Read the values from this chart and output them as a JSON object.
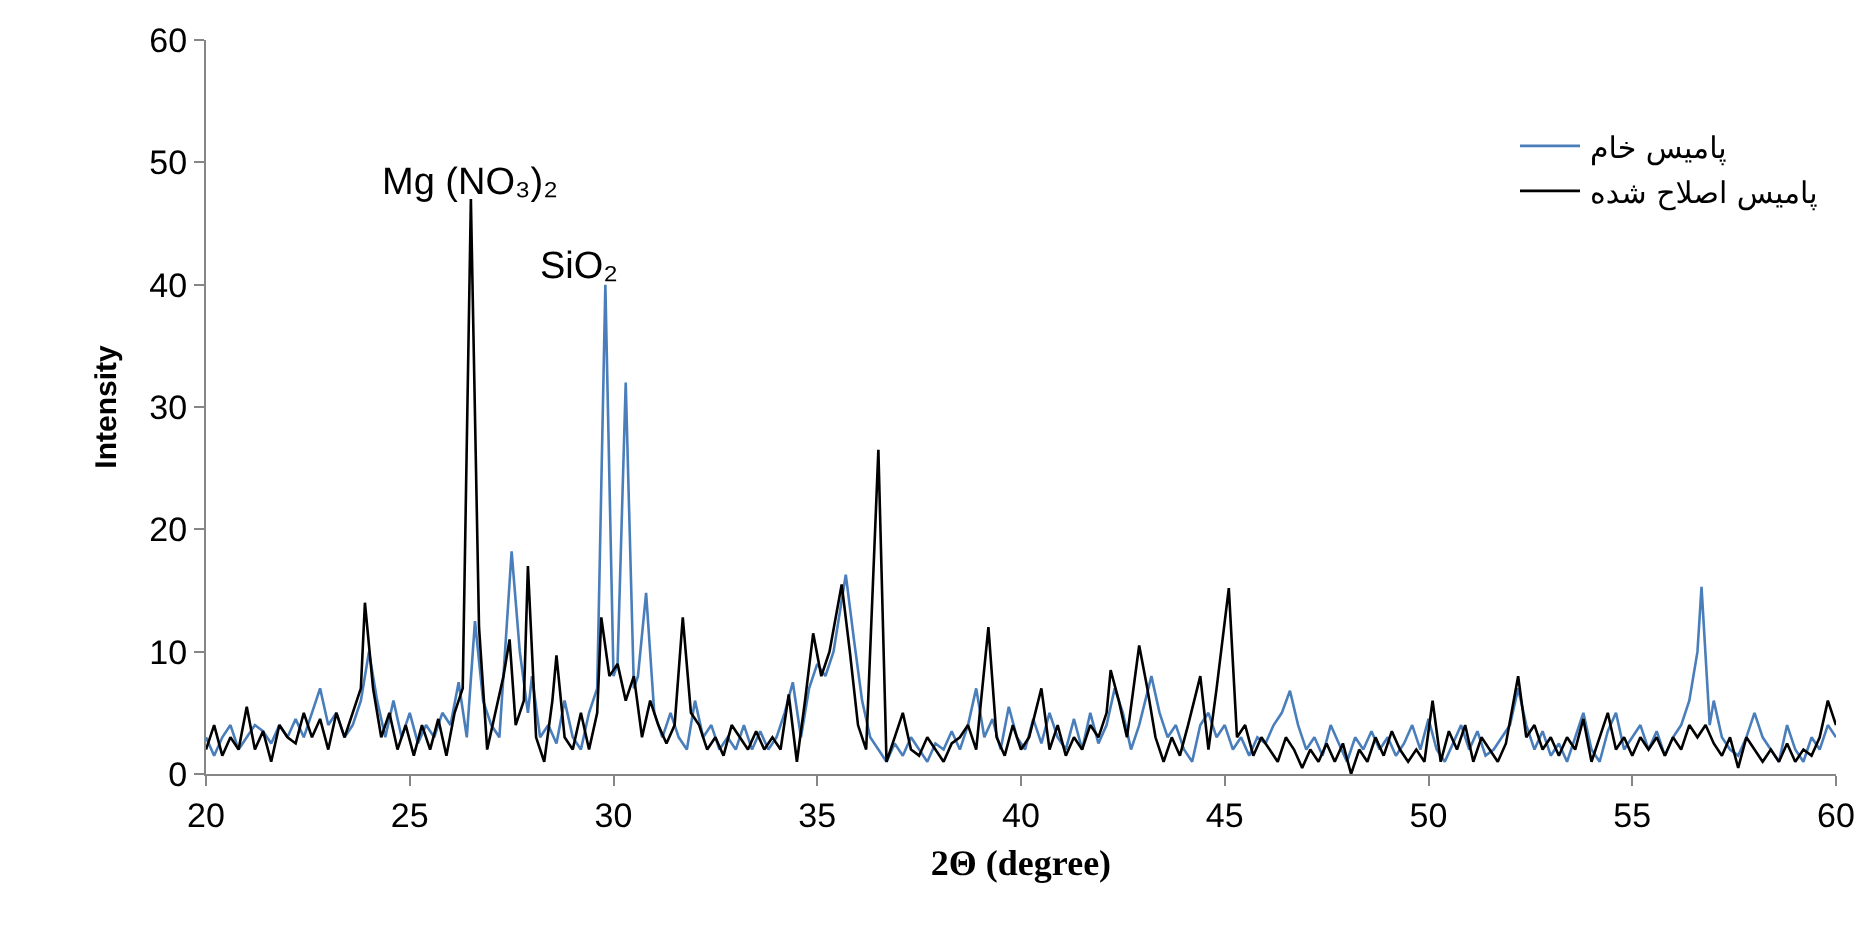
{
  "chart_data": {
    "type": "line",
    "xlabel": "2Θ (degree)",
    "ylabel": "Intensity",
    "xlim": [
      20,
      60
    ],
    "xticks": [
      20,
      25,
      30,
      35,
      40,
      45,
      50,
      55,
      60
    ],
    "ylim": [
      0,
      60
    ],
    "yticks": [
      0,
      10,
      20,
      30,
      40,
      50,
      60
    ],
    "grid": false,
    "legend": "top right",
    "marker": "none",
    "line_style": "solid",
    "annotations": [
      {
        "text": "Mg (NO₃)₂",
        "x": 26.5,
        "y": 47
      },
      {
        "text": "SiO₂",
        "x": 29.8,
        "y": 40
      }
    ],
    "series": [
      {
        "name": "پامیس خام",
        "color": "#4a7ebb",
        "x": [
          20,
          20.2,
          20.4,
          20.6,
          20.8,
          21,
          21.2,
          21.4,
          21.6,
          21.8,
          22,
          22.2,
          22.4,
          22.6,
          22.8,
          23,
          23.2,
          23.4,
          23.6,
          23.8,
          24,
          24.2,
          24.4,
          24.6,
          24.8,
          25,
          25.2,
          25.4,
          25.6,
          25.8,
          26,
          26.2,
          26.4,
          26.6,
          26.8,
          27,
          27.2,
          27.5,
          27.7,
          27.9,
          28,
          28.2,
          28.4,
          28.6,
          28.8,
          29,
          29.2,
          29.4,
          29.6,
          29.8,
          30,
          30.1,
          30.3,
          30.5,
          30.6,
          30.8,
          31,
          31.2,
          31.4,
          31.6,
          31.8,
          32,
          32.2,
          32.4,
          32.6,
          32.8,
          33,
          33.2,
          33.4,
          33.6,
          33.8,
          34,
          34.2,
          34.4,
          34.6,
          34.8,
          35,
          35.2,
          35.4,
          35.7,
          35.9,
          36.1,
          36.3,
          36.5,
          36.7,
          36.9,
          37.1,
          37.3,
          37.5,
          37.7,
          37.9,
          38.1,
          38.3,
          38.5,
          38.7,
          38.9,
          39.1,
          39.3,
          39.5,
          39.7,
          39.9,
          40.1,
          40.3,
          40.5,
          40.7,
          40.9,
          41.1,
          41.3,
          41.5,
          41.7,
          41.9,
          42.1,
          42.3,
          42.5,
          42.7,
          42.9,
          43.2,
          43.4,
          43.6,
          43.8,
          44,
          44.2,
          44.4,
          44.6,
          44.8,
          45,
          45.2,
          45.4,
          45.6,
          45.8,
          46,
          46.2,
          46.4,
          46.6,
          46.8,
          47,
          47.2,
          47.4,
          47.6,
          47.8,
          48,
          48.2,
          48.4,
          48.6,
          48.8,
          49,
          49.2,
          49.4,
          49.6,
          49.8,
          50,
          50.2,
          50.4,
          50.6,
          50.8,
          51,
          51.2,
          51.4,
          51.6,
          51.8,
          52,
          52.2,
          52.4,
          52.6,
          52.8,
          53,
          53.2,
          53.4,
          53.6,
          53.8,
          54,
          54.2,
          54.4,
          54.6,
          54.8,
          55,
          55.2,
          55.4,
          55.6,
          55.8,
          56,
          56.2,
          56.4,
          56.6,
          56.7,
          56.9,
          57,
          57.2,
          57.4,
          57.6,
          57.8,
          58,
          58.2,
          58.4,
          58.6,
          58.8,
          59,
          59.2,
          59.4,
          59.6,
          59.8,
          60
        ],
        "values": [
          3,
          1.5,
          3,
          4,
          2,
          3,
          4,
          3.5,
          2.5,
          4,
          3,
          4.5,
          3,
          5,
          7,
          4,
          5,
          3,
          4,
          6,
          10,
          6,
          3,
          6,
          3,
          5,
          2.5,
          4,
          3,
          5,
          4,
          7.5,
          3,
          12.5,
          6,
          4,
          3,
          18.2,
          10,
          5,
          8,
          3,
          4,
          2.5,
          6,
          3,
          2,
          5,
          7,
          40,
          8,
          9,
          32,
          7,
          8,
          14.8,
          5,
          3,
          5,
          3,
          2,
          6,
          3,
          4,
          2,
          3,
          2,
          4,
          2,
          3.5,
          2,
          3,
          5,
          7.5,
          3,
          7,
          9,
          8,
          10,
          16.3,
          11,
          6,
          3,
          2,
          1,
          2.5,
          1.5,
          3,
          2,
          1,
          2.5,
          2,
          3.5,
          2,
          4,
          7,
          3,
          4.5,
          2,
          5.5,
          3,
          2,
          4.5,
          2.5,
          5,
          3,
          2,
          4.5,
          2,
          5,
          2.5,
          4,
          7,
          5,
          2,
          4,
          8,
          5,
          3,
          4,
          2,
          1,
          4,
          5,
          3,
          4,
          2,
          3,
          1.5,
          3,
          2.5,
          4,
          5,
          6.8,
          4,
          2,
          3,
          1.5,
          4,
          2.5,
          1,
          3,
          2,
          3.5,
          2,
          3,
          1.5,
          2.5,
          4,
          2,
          4.5,
          2,
          1,
          2.5,
          4,
          2,
          3.5,
          1.5,
          2,
          3,
          4,
          7,
          4,
          2,
          3.5,
          1.5,
          2.5,
          1,
          3,
          5,
          2,
          1,
          3.5,
          5,
          2,
          3,
          4,
          2,
          3.5,
          1.5,
          3,
          4,
          6,
          10,
          15.3,
          4,
          6,
          3,
          2,
          1.5,
          3,
          5,
          3,
          2,
          1,
          4,
          2,
          1,
          3,
          2,
          4,
          3
        ]
      },
      {
        "name": "پامیس اصلاح شده",
        "color": "#000000",
        "x": [
          20,
          20.2,
          20.4,
          20.6,
          20.8,
          21,
          21.2,
          21.4,
          21.6,
          21.8,
          22,
          22.2,
          22.4,
          22.6,
          22.8,
          23,
          23.2,
          23.4,
          23.6,
          23.8,
          23.9,
          24.1,
          24.3,
          24.5,
          24.7,
          24.9,
          25.1,
          25.3,
          25.5,
          25.7,
          25.9,
          26.1,
          26.3,
          26.5,
          26.7,
          26.9,
          27.1,
          27.3,
          27.45,
          27.6,
          27.8,
          27.9,
          28.1,
          28.3,
          28.5,
          28.6,
          28.8,
          29,
          29.2,
          29.4,
          29.6,
          29.7,
          29.9,
          30.1,
          30.3,
          30.5,
          30.7,
          30.9,
          31.1,
          31.3,
          31.5,
          31.7,
          31.9,
          32.1,
          32.3,
          32.5,
          32.7,
          32.9,
          33.1,
          33.3,
          33.5,
          33.7,
          33.9,
          34.1,
          34.3,
          34.5,
          34.7,
          34.9,
          35.1,
          35.3,
          35.6,
          35.8,
          36,
          36.2,
          36.5,
          36.7,
          36.9,
          37.1,
          37.3,
          37.5,
          37.7,
          37.9,
          38.1,
          38.3,
          38.5,
          38.7,
          38.9,
          39.2,
          39.4,
          39.6,
          39.8,
          40,
          40.2,
          40.5,
          40.7,
          40.9,
          41.1,
          41.3,
          41.5,
          41.7,
          41.9,
          42.1,
          42.2,
          42.4,
          42.6,
          42.9,
          43.1,
          43.3,
          43.5,
          43.7,
          43.9,
          44.1,
          44.4,
          44.6,
          44.8,
          45.1,
          45.3,
          45.5,
          45.7,
          45.9,
          46.1,
          46.3,
          46.5,
          46.7,
          46.9,
          47.1,
          47.3,
          47.5,
          47.7,
          47.9,
          48.1,
          48.3,
          48.5,
          48.7,
          48.9,
          49.1,
          49.3,
          49.5,
          49.7,
          49.9,
          50.1,
          50.3,
          50.5,
          50.7,
          50.9,
          51.1,
          51.3,
          51.5,
          51.7,
          51.9,
          52.2,
          52.4,
          52.6,
          52.8,
          53,
          53.2,
          53.4,
          53.6,
          53.8,
          54,
          54.2,
          54.4,
          54.6,
          54.8,
          55,
          55.2,
          55.4,
          55.6,
          55.8,
          56,
          56.2,
          56.4,
          56.6,
          56.8,
          57,
          57.2,
          57.4,
          57.6,
          57.8,
          58,
          58.2,
          58.4,
          58.6,
          58.8,
          59,
          59.2,
          59.4,
          59.6,
          59.8,
          60
        ],
        "values": [
          2,
          4,
          1.5,
          3,
          2,
          5.5,
          2,
          3.5,
          1,
          4,
          3,
          2.5,
          5,
          3,
          4.5,
          2,
          5,
          3,
          5,
          7,
          14,
          7,
          3,
          5,
          2,
          4,
          1.5,
          4,
          2,
          4.5,
          1.5,
          5,
          7,
          47,
          12,
          2,
          5,
          8,
          11,
          4,
          6,
          17,
          3,
          1,
          6,
          9.7,
          3,
          2,
          5,
          2,
          5,
          12.8,
          8,
          9,
          6,
          8,
          3,
          6,
          4,
          2.5,
          4,
          12.8,
          5,
          4,
          2,
          3,
          1.5,
          4,
          3,
          2,
          3.5,
          2,
          3,
          2,
          6.5,
          1,
          6,
          11.5,
          8,
          10,
          15.5,
          10,
          4,
          2,
          26.5,
          1,
          3,
          5,
          2,
          1.5,
          3,
          2,
          1,
          2.5,
          3,
          4,
          2,
          12,
          3,
          1.5,
          4,
          2,
          3,
          7,
          2,
          4,
          1.5,
          3,
          2,
          4,
          3,
          5,
          8.5,
          6,
          3,
          10.5,
          7,
          3,
          1,
          3,
          1.5,
          4,
          8,
          2,
          7,
          15.2,
          3,
          4,
          1.5,
          3,
          2,
          1,
          3,
          2,
          0.5,
          2,
          1,
          2.5,
          1,
          2.5,
          0,
          2,
          1,
          3,
          1.5,
          3.5,
          2,
          1,
          2,
          1,
          6,
          1,
          3.5,
          2,
          4,
          1,
          3,
          2,
          1,
          2.5,
          8,
          3,
          4,
          2,
          3,
          1.5,
          3,
          2,
          4.5,
          1,
          3,
          5,
          2,
          3,
          1.5,
          3,
          2,
          3,
          1.5,
          3,
          2,
          4,
          3,
          4,
          2.5,
          1.5,
          3,
          0.5,
          3,
          2,
          1,
          2,
          1,
          2.5,
          1,
          2,
          1.5,
          3,
          6,
          4
        ]
      }
    ]
  }
}
